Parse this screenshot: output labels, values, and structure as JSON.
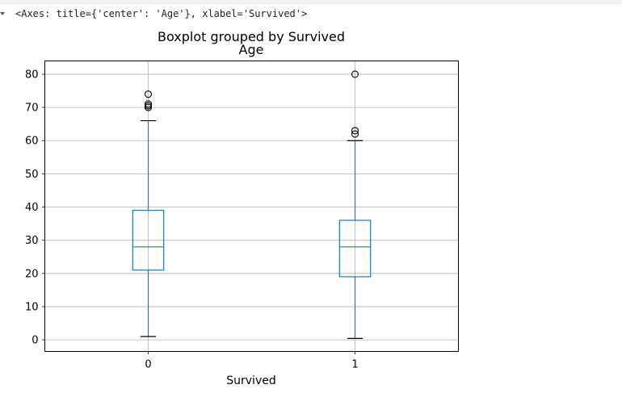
{
  "output": {
    "repr": "<Axes: title={'center': 'Age'}, xlabel='Survived'>"
  },
  "chart_data": {
    "type": "box",
    "suptitle": "Boxplot grouped by Survived",
    "title": "Age",
    "xlabel": "Survived",
    "ylabel": "",
    "categories": [
      "0",
      "1"
    ],
    "ylim": [
      -3.5,
      84
    ],
    "yticks": [
      0,
      10,
      20,
      30,
      40,
      50,
      60,
      70,
      80
    ],
    "grid": true,
    "boxes": [
      {
        "name": "0",
        "whisker_low": 1,
        "q1": 21,
        "median": 28,
        "q3": 39,
        "whisker_high": 66,
        "outliers": [
          70,
          70.5,
          71,
          74
        ]
      },
      {
        "name": "1",
        "whisker_low": 0.42,
        "q1": 19,
        "median": 28,
        "q3": 36,
        "whisker_high": 60,
        "outliers": [
          62,
          63,
          80
        ]
      }
    ],
    "colors": {
      "box": "#1f77b4",
      "median": "#2ca02c",
      "grid": "#b0b0b0",
      "outlier": "#000000"
    }
  }
}
